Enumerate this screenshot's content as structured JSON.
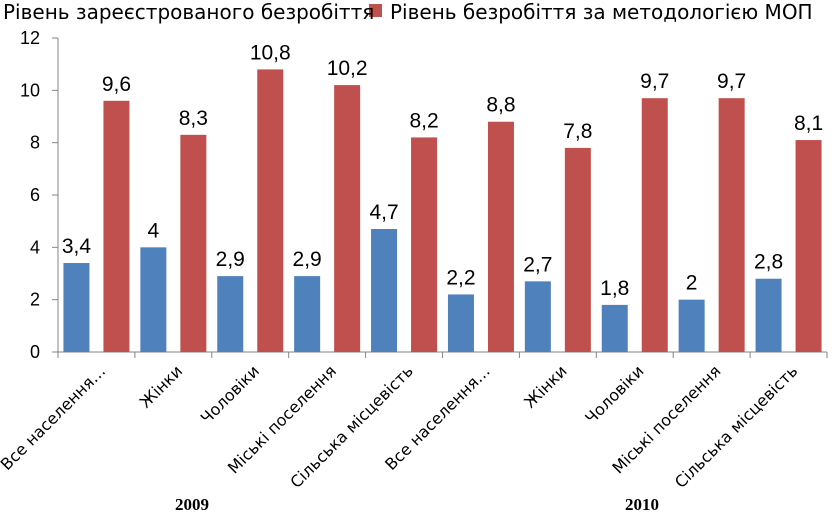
{
  "chart_data": {
    "type": "bar",
    "categories": [
      "Все населення…",
      "Жінки",
      "Чоловіки",
      "Міські поселення",
      "Сільська місцевість",
      "Все населення…",
      "Жінки",
      "Чоловіки",
      "Міські поселення",
      "Сільська місцевість"
    ],
    "groups": [
      {
        "label": "2009",
        "span": [
          0,
          4
        ]
      },
      {
        "label": "2010",
        "span": [
          5,
          9
        ]
      }
    ],
    "series": [
      {
        "name": "Рівень зареєстрованого безробіття",
        "color": "#4F81BD",
        "values": [
          3.4,
          4,
          2.9,
          2.9,
          4.7,
          2.2,
          2.7,
          1.8,
          2,
          2.8
        ],
        "labels": [
          "3,4",
          "4",
          "2,9",
          "2,9",
          "4,7",
          "2,2",
          "2,7",
          "1,8",
          "2",
          "2,8"
        ]
      },
      {
        "name": "Рівень безробіття за методологією МОП",
        "color": "#C0504D",
        "values": [
          9.6,
          8.3,
          10.8,
          10.2,
          8.2,
          8.8,
          7.8,
          9.7,
          9.7,
          8.1
        ],
        "labels": [
          "9,6",
          "8,3",
          "10,8",
          "10,2",
          "8,2",
          "8,8",
          "7,8",
          "9,7",
          "9,7",
          "8,1"
        ]
      }
    ],
    "ylim": [
      0,
      12
    ],
    "yticks": [
      "0",
      "2",
      "4",
      "6",
      "8",
      "10",
      "12"
    ],
    "legend": "top",
    "grid": false
  }
}
